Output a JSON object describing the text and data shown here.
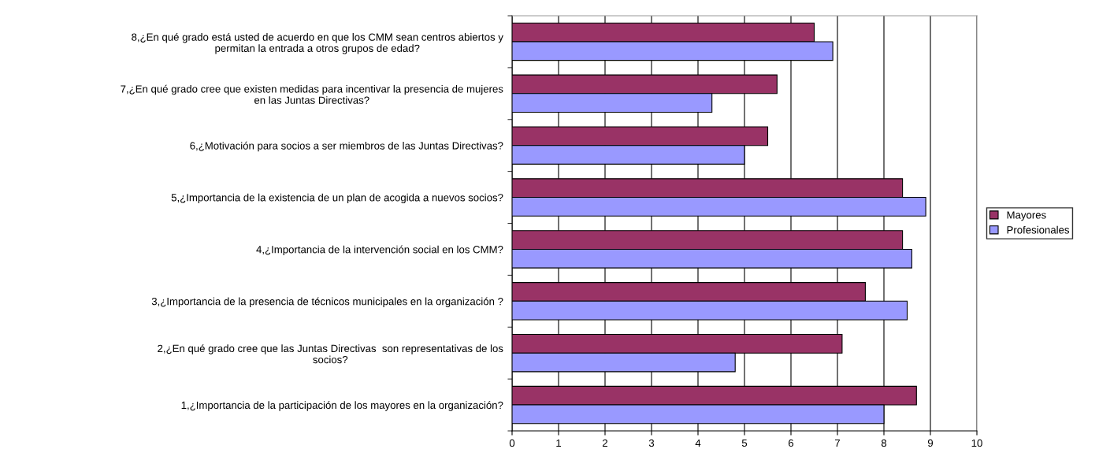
{
  "chart_data": {
    "type": "bar",
    "orientation": "horizontal",
    "categories": [
      "8,¿En qué grado está usted de acuerdo en que los CMM sean centros abiertos y\npermitan la entrada a otros grupos de edad?",
      "7,¿En qué grado cree que existen medidas para incentivar la presencia de mujeres\nen las Juntas Directivas?",
      "6,¿Motivación para socios a ser miembros de las Juntas Directivas?",
      "5,¿Importancia de la existencia de un plan de acogida a nuevos socios?",
      "4,¿Importancia de la intervención social en los CMM?",
      "3,¿Importancia de la presencia de técnicos municipales en la organización ?",
      "2,¿En qué grado cree que las Juntas Directivas  son representativas de los\nsocios?",
      "1,¿Importancia de la participación de los mayores en la organización?"
    ],
    "series": [
      {
        "name": "Mayores",
        "color": "#993366",
        "values": [
          6.5,
          5.7,
          5.5,
          8.4,
          8.4,
          7.6,
          7.1,
          8.7
        ]
      },
      {
        "name": "Profesionales",
        "color": "#9999ff",
        "values": [
          6.9,
          4.3,
          5.0,
          8.9,
          8.6,
          8.5,
          4.8,
          8.0
        ]
      }
    ],
    "xlim": [
      0,
      10
    ],
    "xticks": [
      0,
      1,
      2,
      3,
      4,
      5,
      6,
      7,
      8,
      9,
      10
    ],
    "grid": "x",
    "legend": "right"
  }
}
